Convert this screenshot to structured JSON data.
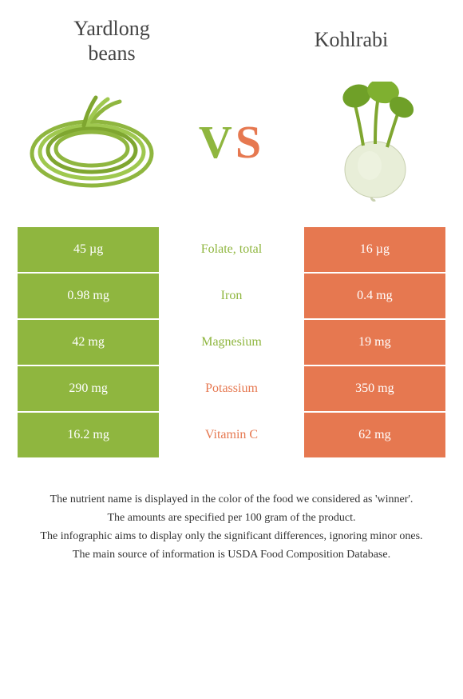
{
  "header": {
    "left_title_line1": "Yardlong",
    "left_title_line2": "beans",
    "right_title": "Kohlrabi"
  },
  "vs": {
    "v": "V",
    "s": "S"
  },
  "colors": {
    "green": "#8fb63f",
    "orange": "#e67850",
    "text": "#444444",
    "white": "#ffffff"
  },
  "table": {
    "rows": [
      {
        "left": "45 µg",
        "label": "Folate, total",
        "right": "16 µg",
        "winner": "green"
      },
      {
        "left": "0.98 mg",
        "label": "Iron",
        "right": "0.4 mg",
        "winner": "green"
      },
      {
        "left": "42 mg",
        "label": "Magnesium",
        "right": "19 mg",
        "winner": "green"
      },
      {
        "left": "290 mg",
        "label": "Potassium",
        "right": "350 mg",
        "winner": "orange"
      },
      {
        "left": "16.2 mg",
        "label": "Vitamin C",
        "right": "62 mg",
        "winner": "orange"
      }
    ]
  },
  "footer": {
    "line1": "The nutrient name is displayed in the color of the food we considered as 'winner'.",
    "line2": "The amounts are specified per 100 gram of the product.",
    "line3": "The infographic aims to display only the significant differences, ignoring minor ones.",
    "line4": "The main source of information is USDA Food Composition Database."
  }
}
